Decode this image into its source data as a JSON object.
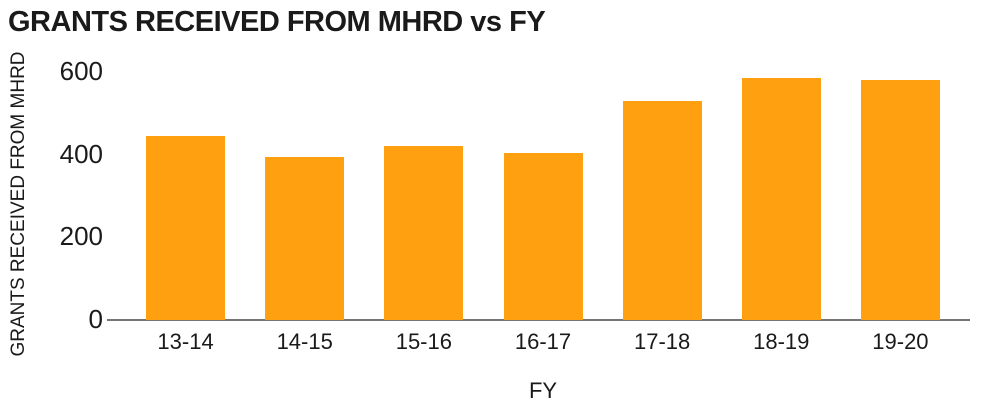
{
  "chart_data": {
    "type": "bar",
    "title": "GRANTS RECEIVED FROM MHRD vs FY",
    "xlabel": "FY",
    "ylabel": "GRANTS RECEIVED FROM MHRD",
    "categories": [
      "13-14",
      "14-15",
      "15-16",
      "16-17",
      "17-18",
      "18-19",
      "19-20"
    ],
    "values": [
      445,
      395,
      420,
      405,
      530,
      585,
      580
    ],
    "ylim": [
      0,
      600
    ],
    "yticks": [
      0,
      200,
      400,
      600
    ],
    "grid": "off",
    "legend": "none",
    "colors": {
      "bar": "#FFA011",
      "axis_line": "#757575",
      "text": "#1A1A1A",
      "background": "#FFFFFF"
    }
  }
}
